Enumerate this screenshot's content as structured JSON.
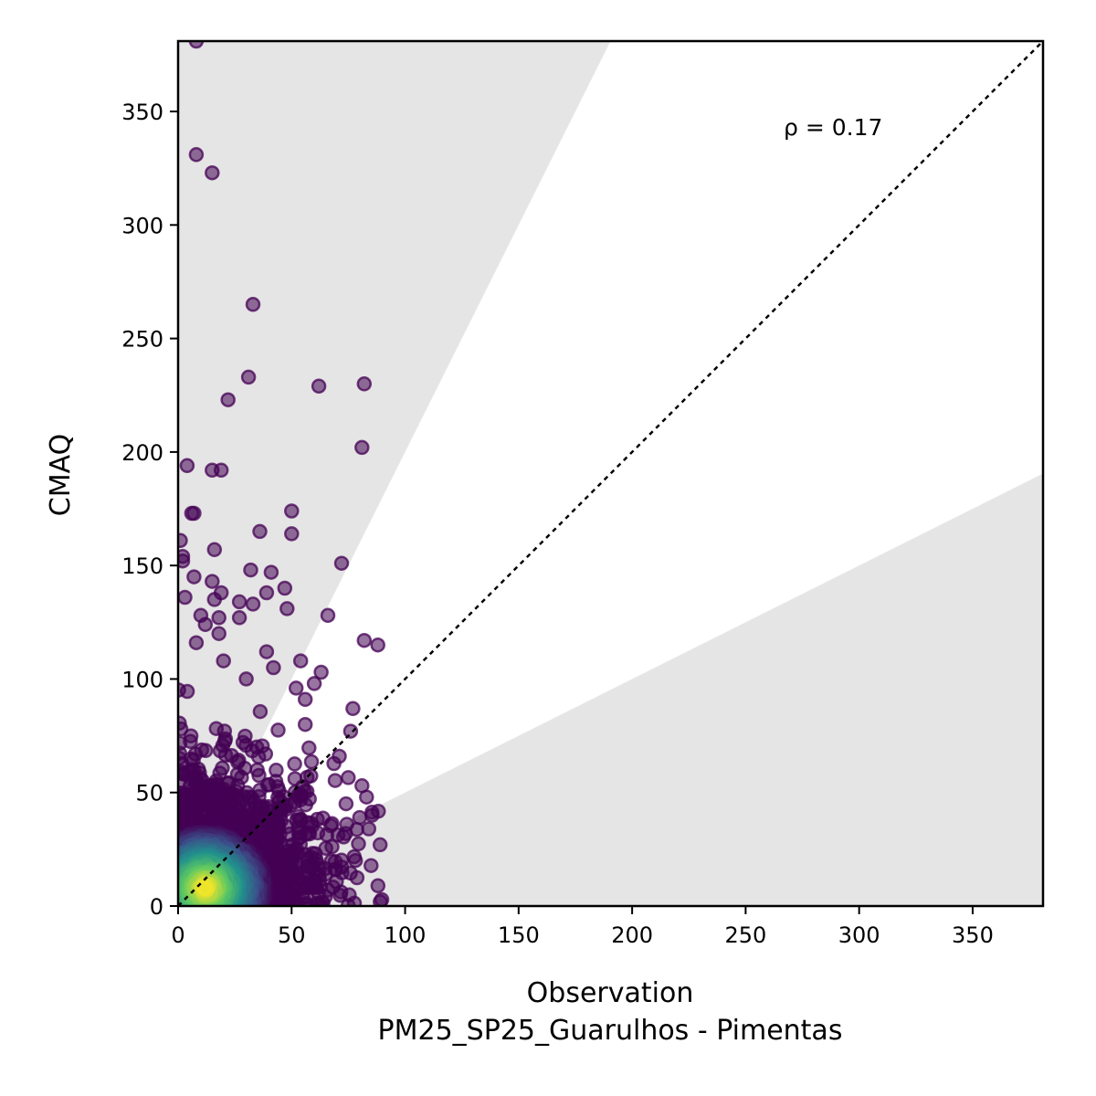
{
  "chart_data": {
    "type": "scatter",
    "title": "",
    "xlabel": "Observation",
    "xlabel_sub": "PM25_SP25_Guarulhos - Pimentas",
    "ylabel": "CMAQ",
    "xlim": [
      0,
      381
    ],
    "ylim": [
      0,
      381
    ],
    "x_ticks": [
      0,
      50,
      100,
      150,
      200,
      250,
      300,
      350
    ],
    "y_ticks": [
      0,
      50,
      100,
      150,
      200,
      250,
      300,
      350
    ],
    "annotation": "ρ = 0.17",
    "one_to_one_line": true,
    "shaded_regions": "outside factor-of-2 band (y > 2x and y < x/2)",
    "colormap": "viridis",
    "grid": false,
    "colors": {
      "shade": "#e5e5e5",
      "low_density": "#440154",
      "high_density": "#fde725"
    },
    "outliers": [
      {
        "x": 8,
        "y": 381
      },
      {
        "x": 8,
        "y": 331
      },
      {
        "x": 15,
        "y": 323
      },
      {
        "x": 33,
        "y": 265
      },
      {
        "x": 31,
        "y": 233
      },
      {
        "x": 22,
        "y": 223
      },
      {
        "x": 62,
        "y": 229
      },
      {
        "x": 82,
        "y": 230
      },
      {
        "x": 81,
        "y": 202
      },
      {
        "x": 4,
        "y": 194
      },
      {
        "x": 15,
        "y": 192
      },
      {
        "x": 19,
        "y": 192
      },
      {
        "x": 6,
        "y": 173
      },
      {
        "x": 7,
        "y": 173
      },
      {
        "x": 50,
        "y": 174
      },
      {
        "x": 50,
        "y": 164
      },
      {
        "x": 36,
        "y": 165
      },
      {
        "x": 1,
        "y": 161
      },
      {
        "x": 2,
        "y": 154
      },
      {
        "x": 2,
        "y": 152
      },
      {
        "x": 16,
        "y": 157
      },
      {
        "x": 72,
        "y": 151
      },
      {
        "x": 32,
        "y": 148
      },
      {
        "x": 41,
        "y": 147
      },
      {
        "x": 7,
        "y": 145
      },
      {
        "x": 15,
        "y": 143
      },
      {
        "x": 47,
        "y": 140
      },
      {
        "x": 39,
        "y": 138
      },
      {
        "x": 19,
        "y": 138
      },
      {
        "x": 3,
        "y": 136
      },
      {
        "x": 16,
        "y": 135
      },
      {
        "x": 27,
        "y": 134
      },
      {
        "x": 33,
        "y": 133
      },
      {
        "x": 48,
        "y": 131
      },
      {
        "x": 66,
        "y": 128
      },
      {
        "x": 10,
        "y": 128
      },
      {
        "x": 18,
        "y": 127
      },
      {
        "x": 27,
        "y": 127
      },
      {
        "x": 12,
        "y": 124
      },
      {
        "x": 18,
        "y": 120
      },
      {
        "x": 82,
        "y": 117
      },
      {
        "x": 88,
        "y": 115
      },
      {
        "x": 8,
        "y": 116
      },
      {
        "x": 39,
        "y": 112
      },
      {
        "x": 54,
        "y": 108
      },
      {
        "x": 20,
        "y": 108
      },
      {
        "x": 42,
        "y": 105
      },
      {
        "x": 63,
        "y": 103
      },
      {
        "x": 30,
        "y": 100
      },
      {
        "x": 60,
        "y": 98
      },
      {
        "x": 52,
        "y": 96
      },
      {
        "x": 56,
        "y": 91
      },
      {
        "x": 77,
        "y": 87
      },
      {
        "x": 76,
        "y": 77
      },
      {
        "x": 56,
        "y": 80
      },
      {
        "x": 71,
        "y": 66
      },
      {
        "x": 81,
        "y": 53
      },
      {
        "x": 83,
        "y": 48
      },
      {
        "x": 74,
        "y": 45
      },
      {
        "x": 80,
        "y": 39
      },
      {
        "x": 84,
        "y": 34
      },
      {
        "x": 89,
        "y": 27
      }
    ],
    "density_core": {
      "description": "dense cloud of points concentrated near the origin, x in [0, 92], y in [0, 100]",
      "peak": {
        "x": 12,
        "y": 8
      }
    }
  }
}
